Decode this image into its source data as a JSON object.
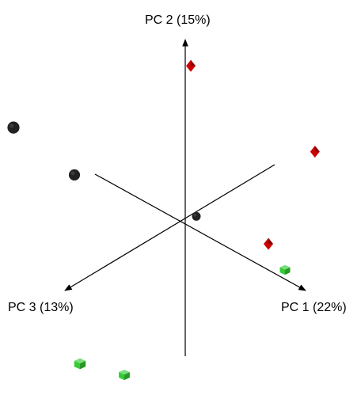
{
  "chart_data": {
    "type": "scatter",
    "projection": "3d",
    "axes": [
      {
        "name": "PC 1",
        "label": "PC 1 (22%)",
        "variance_explained_pct": 22
      },
      {
        "name": "PC 2",
        "label": "PC 2 (15%)",
        "variance_explained_pct": 15
      },
      {
        "name": "PC 3",
        "label": "PC 3 (13%)",
        "variance_explained_pct": 13
      }
    ],
    "series": [
      {
        "color": "#cc0000",
        "marker": "diamond",
        "points": [
          {
            "pc1": 0.1,
            "pc2": 0.95,
            "pc3": 0.05
          },
          {
            "pc1": 0.62,
            "pc2": 0.42,
            "pc3": -0.55
          },
          {
            "pc1": 0.85,
            "pc2": 0.22,
            "pc3": 0.1
          }
        ]
      },
      {
        "color": "#33cc33",
        "marker": "cube",
        "points": [
          {
            "pc1": 1.02,
            "pc2": 0.14,
            "pc3": 0.12
          },
          {
            "pc1": -0.2,
            "pc2": -0.85,
            "pc3": 0.35
          },
          {
            "pc1": -0.55,
            "pc2": -0.9,
            "pc3": 0.4
          }
        ]
      },
      {
        "color": "#222222",
        "marker": "sphere",
        "points": [
          {
            "pc1": 0.08,
            "pc2": 0.04,
            "pc3": -0.02
          },
          {
            "pc1": -0.55,
            "pc2": 0.22,
            "pc3": 0.45
          },
          {
            "pc1": -0.95,
            "pc2": 0.4,
            "pc3": 0.6
          }
        ]
      }
    ],
    "grid": false,
    "legend": false
  }
}
